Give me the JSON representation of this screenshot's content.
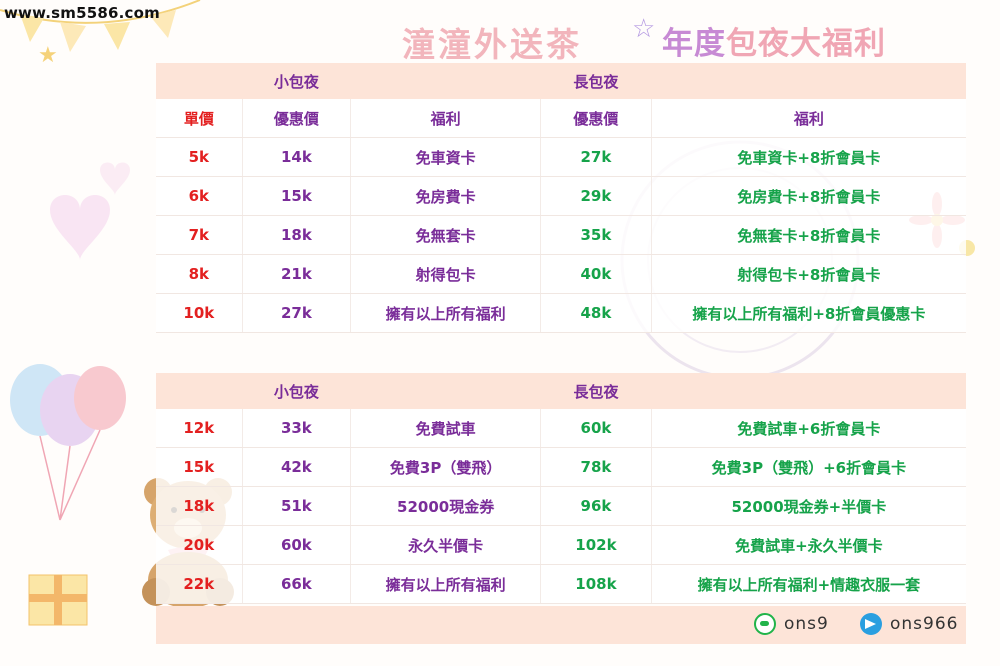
{
  "header": {
    "site_url": "www.sm5586.com",
    "brand": "潼潼外送茶",
    "headline_part1": "年度",
    "headline_part2": "包夜大福利"
  },
  "table1": {
    "group_labels": {
      "short": "小包夜",
      "long": "長包夜"
    },
    "columns": [
      "單價",
      "優惠價",
      "福利",
      "優惠價",
      "福利"
    ],
    "rows": [
      [
        "5k",
        "14k",
        "免車資卡",
        "27k",
        "免車資卡+8折會員卡"
      ],
      [
        "6k",
        "15k",
        "免房費卡",
        "29k",
        "免房費卡+8折會員卡"
      ],
      [
        "7k",
        "18k",
        "免無套卡",
        "35k",
        "免無套卡+8折會員卡"
      ],
      [
        "8k",
        "21k",
        "射得包卡",
        "40k",
        "射得包卡+8折會員卡"
      ],
      [
        "10k",
        "27k",
        "擁有以上所有福利",
        "48k",
        "擁有以上所有福利+8折會員優惠卡"
      ]
    ]
  },
  "table2": {
    "group_labels": {
      "short": "小包夜",
      "long": "長包夜"
    },
    "rows": [
      [
        "12k",
        "33k",
        "免費試車",
        "60k",
        "免費試車+6折會員卡"
      ],
      [
        "15k",
        "42k",
        "免費3P（雙飛）",
        "78k",
        "免費3P（雙飛）+6折會員卡"
      ],
      [
        "18k",
        "51k",
        "52000現金券",
        "96k",
        "52000現金券+半價卡"
      ],
      [
        "20k",
        "60k",
        "永久半價卡",
        "102k",
        "免費試車+永久半價卡"
      ],
      [
        "22k",
        "66k",
        "擁有以上所有福利",
        "108k",
        "擁有以上所有福利+情趣衣服一套"
      ]
    ]
  },
  "footer": {
    "line_id": "ons9",
    "telegram_id": "ons966"
  },
  "colors": {
    "header_band": "#fde4d8",
    "price_red": "#e32020",
    "purple_text": "#7a2d99",
    "green_text": "#16a34a"
  },
  "icons": [
    "line-icon",
    "telegram-icon",
    "teddy-bear-illustration",
    "balloons-illustration",
    "gift-box-illustration",
    "bunting-flags-decoration",
    "flower-decoration",
    "magic-wand-icon"
  ]
}
